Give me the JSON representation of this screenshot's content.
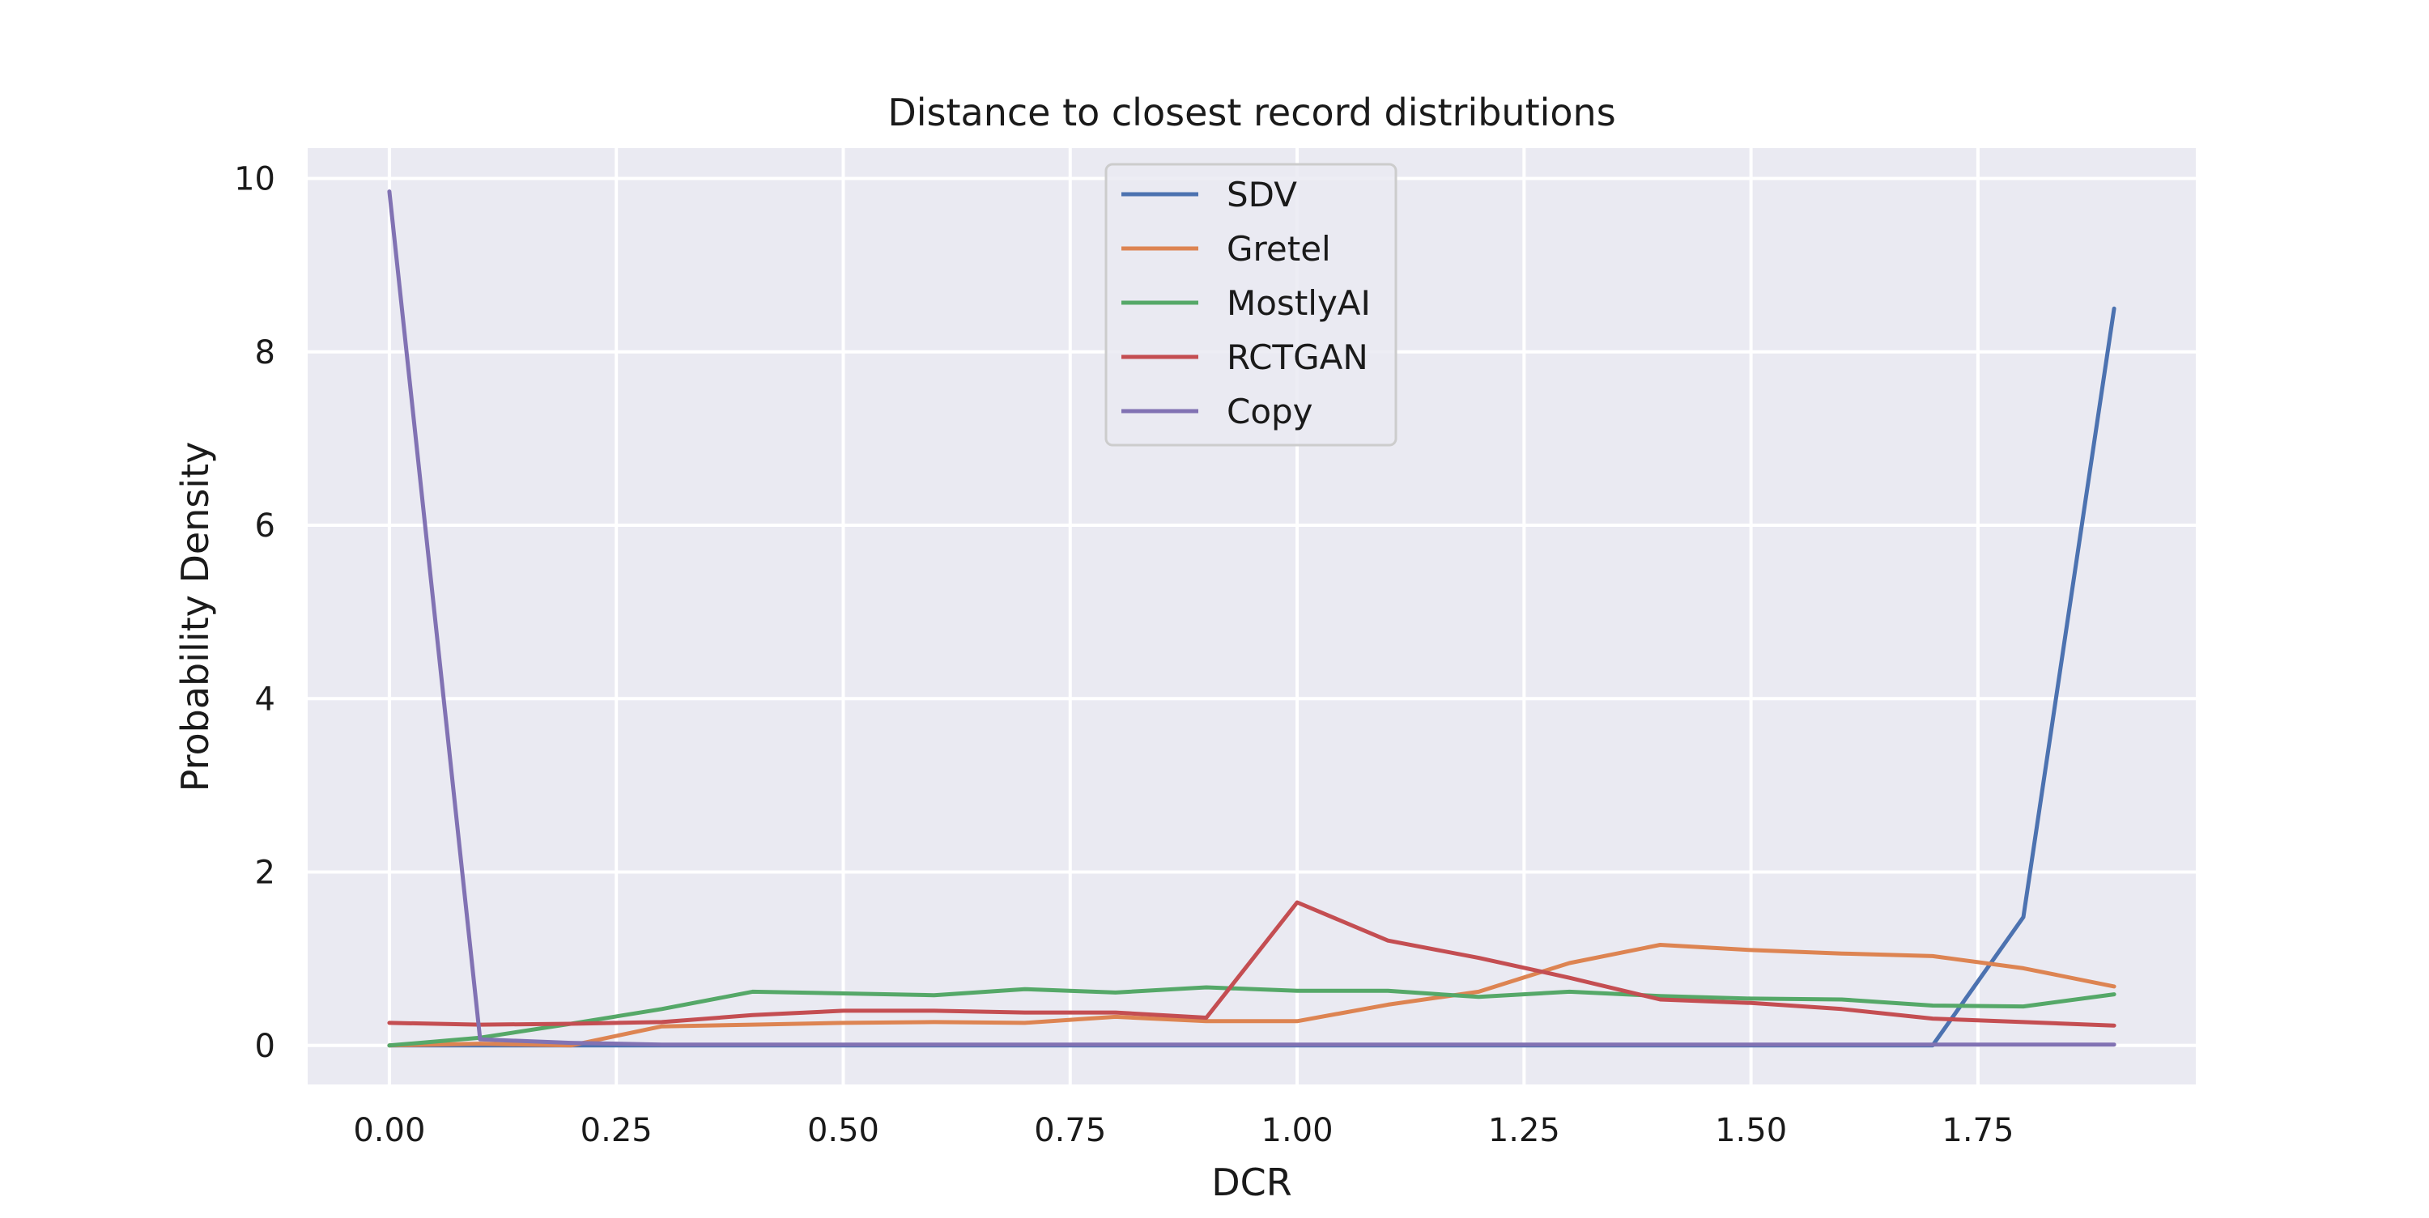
{
  "chart_data": {
    "type": "line",
    "title": "Distance to closest record distributions",
    "xlabel": "DCR",
    "ylabel": "Probability Density",
    "xlim": [
      -0.09,
      1.99
    ],
    "ylim": [
      -0.45,
      10.35
    ],
    "xticks": [
      0.0,
      0.25,
      0.5,
      0.75,
      1.0,
      1.25,
      1.5,
      1.75
    ],
    "xtick_labels": [
      "0.00",
      "0.25",
      "0.50",
      "0.75",
      "1.00",
      "1.25",
      "1.50",
      "1.75"
    ],
    "yticks": [
      0,
      2,
      4,
      6,
      8,
      10
    ],
    "ytick_labels": [
      "0",
      "2",
      "4",
      "6",
      "8",
      "10"
    ],
    "grid": true,
    "legend_position": "upper-center",
    "x": [
      0.0,
      0.1,
      0.2,
      0.3,
      0.4,
      0.5,
      0.6,
      0.7,
      0.8,
      0.9,
      1.0,
      1.1,
      1.2,
      1.3,
      1.4,
      1.5,
      1.6,
      1.7,
      1.8,
      1.9
    ],
    "series": [
      {
        "name": "SDV",
        "color": "#4c72b0",
        "values": [
          0,
          0,
          0,
          0,
          0,
          0,
          0,
          0,
          0,
          0,
          0,
          0,
          0,
          0,
          0,
          0,
          0,
          0,
          1.48,
          8.5
        ]
      },
      {
        "name": "Gretel",
        "color": "#dd8452",
        "values": [
          0,
          0.02,
          0,
          0.22,
          0.24,
          0.26,
          0.27,
          0.26,
          0.33,
          0.28,
          0.28,
          0.47,
          0.62,
          0.95,
          1.16,
          1.1,
          1.06,
          1.03,
          0.89,
          0.68
        ]
      },
      {
        "name": "MostlyAI",
        "color": "#55a868",
        "values": [
          0,
          0.09,
          0.25,
          0.42,
          0.62,
          0.6,
          0.58,
          0.65,
          0.61,
          0.67,
          0.63,
          0.63,
          0.56,
          0.62,
          0.57,
          0.54,
          0.53,
          0.46,
          0.45,
          0.59
        ]
      },
      {
        "name": "RCTGAN",
        "color": "#c44e52",
        "values": [
          0.26,
          0.24,
          0.25,
          0.27,
          0.35,
          0.4,
          0.4,
          0.38,
          0.38,
          0.32,
          1.65,
          1.21,
          1.01,
          0.78,
          0.53,
          0.49,
          0.42,
          0.31,
          0.27,
          0.23
        ]
      },
      {
        "name": "Copy",
        "color": "#8172b3",
        "values": [
          9.85,
          0.07,
          0.03,
          0.01,
          0.01,
          0.01,
          0.01,
          0.01,
          0.01,
          0.01,
          0.01,
          0.01,
          0.01,
          0.01,
          0.01,
          0.01,
          0.01,
          0.01,
          0.01,
          0.01
        ]
      }
    ]
  },
  "colors": {
    "plot_background": "#eaeaf2",
    "grid": "#ffffff"
  }
}
